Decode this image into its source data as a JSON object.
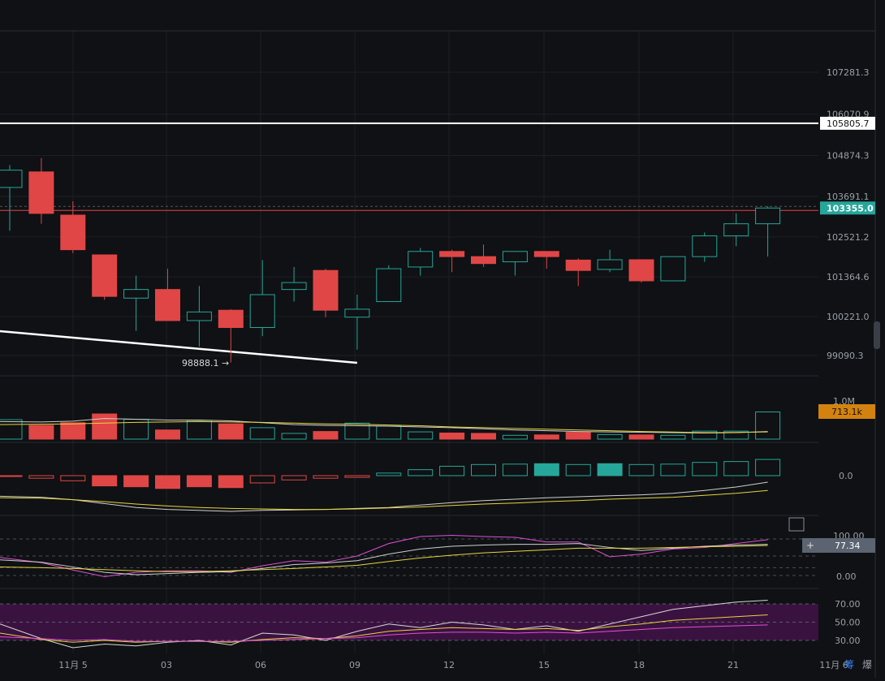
{
  "chart_data": {
    "type": "candlestick",
    "x_axis": {
      "tick_labels": [
        "11月 5",
        "03",
        "06",
        "09",
        "12",
        "15",
        "18",
        "21",
        "11月 6"
      ],
      "extra_labels": [
        "筹",
        "爆"
      ]
    },
    "price_axis": {
      "tick_labels": [
        "107281.3",
        "106070.9",
        "104874.3",
        "103691.1",
        "102521.2",
        "101364.6",
        "100221.0",
        "99090.3"
      ],
      "ylim": [
        98600,
        108200
      ]
    },
    "candles": [
      {
        "o": 103950,
        "h": 104600,
        "l": 102700,
        "c": 104450
      },
      {
        "o": 104400,
        "h": 104800,
        "l": 102900,
        "c": 103200
      },
      {
        "o": 103150,
        "h": 103550,
        "l": 102050,
        "c": 102150
      },
      {
        "o": 102000,
        "h": 102000,
        "l": 100700,
        "c": 100800
      },
      {
        "o": 100750,
        "h": 101400,
        "l": 99800,
        "c": 101000
      },
      {
        "o": 101000,
        "h": 101600,
        "l": 100100,
        "c": 100100
      },
      {
        "o": 100100,
        "h": 101100,
        "l": 99350,
        "c": 100350
      },
      {
        "o": 100400,
        "h": 100430,
        "l": 98888.1,
        "c": 99900
      },
      {
        "o": 99900,
        "h": 101850,
        "l": 99650,
        "c": 100850
      },
      {
        "o": 101000,
        "h": 101650,
        "l": 100650,
        "c": 101200
      },
      {
        "o": 101550,
        "h": 101600,
        "l": 100200,
        "c": 100400
      },
      {
        "o": 100200,
        "h": 100850,
        "l": 99260,
        "c": 100430
      },
      {
        "o": 100650,
        "h": 101700,
        "l": 100650,
        "c": 101600
      },
      {
        "o": 101650,
        "h": 102200,
        "l": 101400,
        "c": 102100
      },
      {
        "o": 102100,
        "h": 102150,
        "l": 101500,
        "c": 101950
      },
      {
        "o": 101950,
        "h": 102300,
        "l": 101650,
        "c": 101750
      },
      {
        "o": 101800,
        "h": 102100,
        "l": 101400,
        "c": 102100
      },
      {
        "o": 102100,
        "h": 102100,
        "l": 101600,
        "c": 101950
      },
      {
        "o": 101850,
        "h": 101900,
        "l": 101100,
        "c": 101550
      },
      {
        "o": 101580,
        "h": 102150,
        "l": 101500,
        "c": 101860
      },
      {
        "o": 101860,
        "h": 101860,
        "l": 101200,
        "c": 101250
      },
      {
        "o": 101250,
        "h": 101950,
        "l": 101250,
        "c": 101950
      },
      {
        "o": 101950,
        "h": 102650,
        "l": 101800,
        "c": 102550
      },
      {
        "o": 102550,
        "h": 103200,
        "l": 102250,
        "c": 102900
      },
      {
        "o": 102900,
        "h": 103400,
        "l": 101950,
        "c": 103355
      }
    ],
    "trendline_low_label": "98888.1 →",
    "horizontal_line": {
      "value": 105805.7,
      "label": "105805.7"
    },
    "current_price": {
      "value": 103355.0,
      "label": "103355.0"
    },
    "volume": {
      "label_max": "1.0M",
      "current_label": "713.1k",
      "values": [
        510,
        360,
        430,
        660,
        520,
        240,
        490,
        400,
        300,
        150,
        200,
        420,
        340,
        190,
        160,
        150,
        100,
        110,
        180,
        120,
        110,
        100,
        210,
        210,
        713
      ],
      "ma_white": [
        460,
        450,
        470,
        540,
        520,
        500,
        500,
        480,
        430,
        380,
        360,
        350,
        340,
        320,
        300,
        270,
        240,
        220,
        200,
        190,
        180,
        170,
        160,
        170,
        200
      ],
      "ma_yellow": [
        380,
        390,
        400,
        420,
        440,
        450,
        460,
        450,
        440,
        420,
        400,
        390,
        370,
        350,
        320,
        300,
        280,
        260,
        240,
        220,
        200,
        185,
        170,
        175,
        190
      ]
    },
    "macd": {
      "zero_label": "0.0",
      "histogram": [
        -20,
        -60,
        -120,
        -240,
        -260,
        -300,
        -260,
        -280,
        -170,
        -100,
        -60,
        -40,
        60,
        140,
        220,
        260,
        270,
        280,
        260,
        280,
        260,
        270,
        310,
        330,
        380
      ],
      "macd_line": [
        -450,
        -470,
        -520,
        -600,
        -680,
        -720,
        -740,
        -760,
        -740,
        -730,
        -720,
        -700,
        -680,
        -630,
        -580,
        -540,
        -510,
        -480,
        -460,
        -440,
        -420,
        -390,
        -330,
        -260,
        -160
      ],
      "signal_line": [
        -480,
        -490,
        -520,
        -560,
        -610,
        -650,
        -680,
        -700,
        -710,
        -720,
        -720,
        -710,
        -690,
        -670,
        -640,
        -610,
        -590,
        -560,
        -540,
        -510,
        -490,
        -470,
        -430,
        -390,
        -330
      ]
    },
    "oscillator1": {
      "labels": [
        "100.00",
        "0.00"
      ],
      "current_label": "77.34",
      "k_magenta": [
        46,
        33,
        14,
        -3,
        8,
        12,
        12,
        8,
        25,
        38,
        34,
        50,
        82,
        100,
        103,
        100,
        98,
        86,
        86,
        48,
        55,
        68,
        72,
        82,
        92
      ],
      "d_white": [
        40,
        34,
        22,
        8,
        2,
        5,
        8,
        10,
        18,
        28,
        32,
        38,
        55,
        68,
        75,
        78,
        80,
        80,
        82,
        72,
        64,
        70,
        75,
        78,
        80
      ],
      "j_yellow": [
        22,
        20,
        18,
        15,
        12,
        10,
        10,
        12,
        15,
        18,
        22,
        26,
        36,
        45,
        52,
        58,
        62,
        66,
        70,
        70,
        70,
        72,
        74,
        75,
        77
      ]
    },
    "oscillator2": {
      "labels": [
        "70.00",
        "50.00",
        "30.00"
      ],
      "white": [
        48,
        32,
        22,
        26,
        24,
        28,
        30,
        25,
        38,
        36,
        30,
        40,
        48,
        44,
        50,
        47,
        42,
        46,
        40,
        48,
        56,
        64,
        68,
        72,
        74
      ],
      "yellow": [
        38,
        31,
        28,
        30,
        28,
        29,
        29,
        28,
        31,
        33,
        32,
        35,
        40,
        42,
        44,
        43,
        42,
        43,
        41,
        45,
        48,
        52,
        54,
        56,
        58
      ],
      "magenta": [
        34,
        32,
        30,
        31,
        29,
        29,
        29,
        29,
        30,
        31,
        32,
        33,
        36,
        38,
        39,
        39,
        38,
        39,
        38,
        40,
        42,
        44,
        45,
        46,
        47
      ]
    }
  }
}
